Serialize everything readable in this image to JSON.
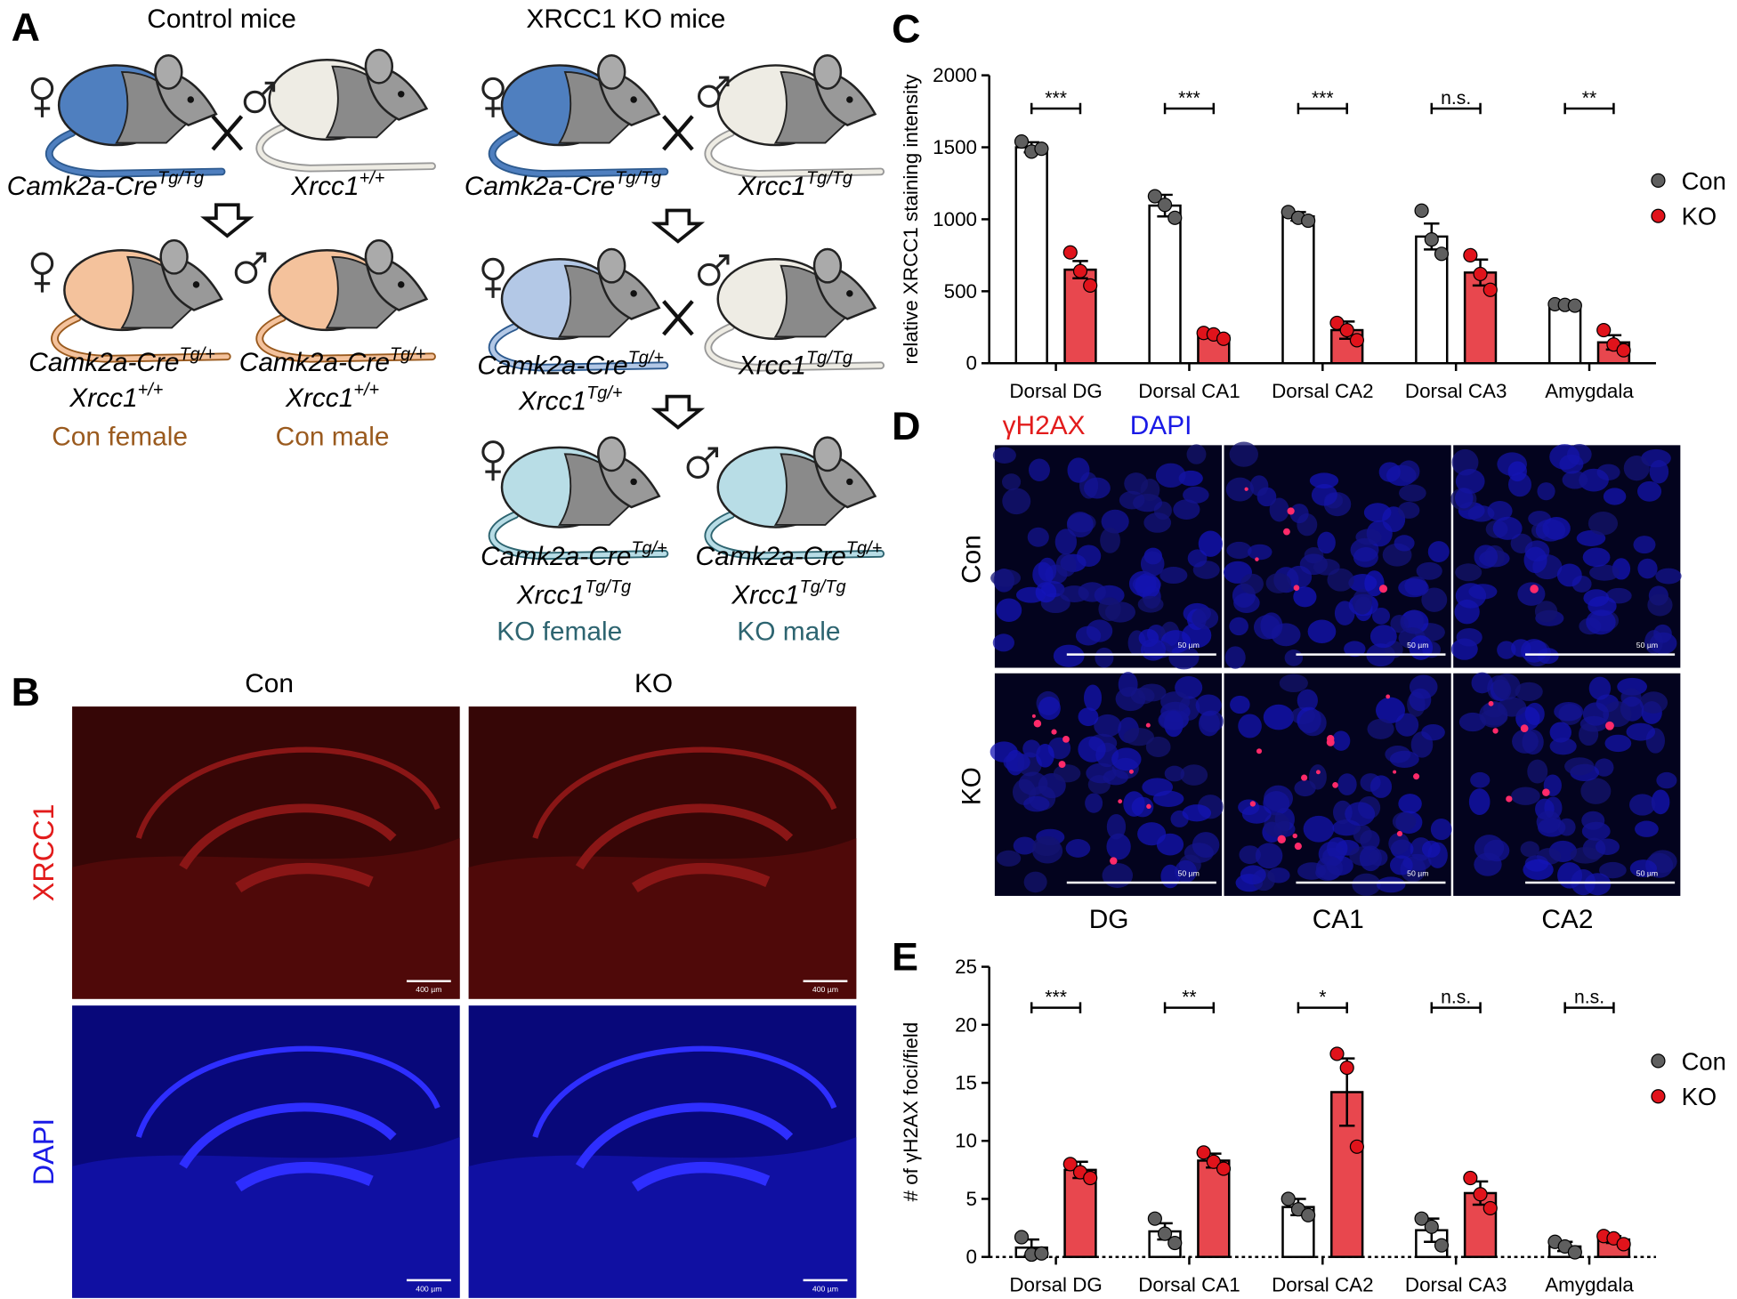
{
  "panel_a": {
    "label": "A",
    "titles": [
      "Control mice",
      "XRCC1 KO mice"
    ],
    "genotypes": [
      {
        "gene": "Camk2a-Cre",
        "sup": "Tg/Tg"
      },
      {
        "gene": "Xrcc1",
        "sup": "+/+"
      },
      {
        "gene": "Camk2a-Cre",
        "sup": "Tg/+"
      },
      {
        "gene": "Xrcc1",
        "sup": "+/+"
      },
      {
        "gene": "Camk2a-Cre",
        "sup": "Tg/+"
      },
      {
        "gene": "Xrcc1",
        "sup": "+/+"
      },
      {
        "gene": "Camk2a-Cre",
        "sup": "Tg/Tg"
      },
      {
        "gene": "Xrcc1",
        "sup": "Tg/Tg"
      },
      {
        "gene": "Camk2a-Cre",
        "sup": "Tg/+"
      },
      {
        "gene": "Xrcc1",
        "sup": "Tg/+"
      },
      {
        "gene": "Xrcc1",
        "sup": "Tg/Tg"
      },
      {
        "gene": "Camk2a-Cre",
        "sup": "Tg/+"
      },
      {
        "gene": "Xrcc1",
        "sup": "Tg/Tg"
      },
      {
        "gene": "Camk2a-Cre",
        "sup": "Tg/+"
      },
      {
        "gene": "Xrcc1",
        "sup": "Tg/Tg"
      }
    ],
    "groups": [
      "Con female",
      "Con male",
      "KO female",
      "KO male"
    ]
  },
  "panel_b": {
    "label": "B",
    "columns": [
      "Con",
      "KO"
    ],
    "rows": [
      "XRCC1",
      "DAPI"
    ],
    "scale_label": "400 µm"
  },
  "panel_d": {
    "label": "D",
    "stains": [
      "γH2AX",
      "DAPI"
    ],
    "rows": [
      "Con",
      "KO"
    ],
    "columns": [
      "DG",
      "CA1",
      "CA2"
    ],
    "scale_label": "50 µm"
  },
  "chart_data": [
    {
      "type": "bar",
      "label": "C",
      "ylabel": "relative XRCC1 staining intensity",
      "categories": [
        "Dorsal DG",
        "Dorsal CA1",
        "Dorsal CA2",
        "Dorsal CA3",
        "Amygdala"
      ],
      "ylim": [
        0,
        2000
      ],
      "yticks": [
        0,
        500,
        1000,
        1500,
        2000
      ],
      "series": [
        {
          "name": "Con",
          "color": "#ffffff",
          "dot_color": "#5f5f5f",
          "values": [
            1500,
            1095,
            1020,
            880,
            400
          ],
          "errors": [
            35,
            75,
            30,
            90,
            8
          ],
          "points": [
            [
              1540,
              1470,
              1490
            ],
            [
              1160,
              1100,
              1010
            ],
            [
              1050,
              1010,
              990
            ],
            [
              1060,
              860,
              760
            ],
            [
              410,
              405,
              400
            ]
          ]
        },
        {
          "name": "KO",
          "color": "#e8474e",
          "dot_color": "#e0131b",
          "values": [
            650,
            190,
            230,
            630,
            145
          ],
          "errors": [
            60,
            15,
            60,
            90,
            50
          ],
          "points": [
            [
              770,
              640,
              540
            ],
            [
              210,
              200,
              170
            ],
            [
              280,
              230,
              160
            ],
            [
              750,
              620,
              510
            ],
            [
              230,
              130,
              90
            ]
          ]
        }
      ],
      "significance": [
        "***",
        "***",
        "***",
        "n.s.",
        "**"
      ]
    },
    {
      "type": "bar",
      "label": "E",
      "ylabel": "# of γH2AX foci/field",
      "categories": [
        "Dorsal DG",
        "Dorsal CA1",
        "Dorsal CA2",
        "Dorsal CA3",
        "Amygdala"
      ],
      "ylim": [
        0,
        25
      ],
      "yticks": [
        0,
        5,
        10,
        15,
        20,
        25
      ],
      "series": [
        {
          "name": "Con",
          "color": "#ffffff",
          "dot_color": "#5f5f5f",
          "values": [
            0.8,
            2.2,
            4.3,
            2.3,
            0.9
          ],
          "errors": [
            0.7,
            0.7,
            0.7,
            1.0,
            0.4
          ],
          "points": [
            [
              1.7,
              0.2,
              0.3
            ],
            [
              3.3,
              2.0,
              1.2
            ],
            [
              5.0,
              4.1,
              3.6
            ],
            [
              3.3,
              2.6,
              1.0
            ],
            [
              1.3,
              0.9,
              0.4
            ]
          ]
        },
        {
          "name": "KO",
          "color": "#e8474e",
          "dot_color": "#e0131b",
          "values": [
            7.5,
            8.3,
            14.2,
            5.5,
            1.5
          ],
          "errors": [
            0.7,
            0.6,
            2.9,
            1.0,
            0.3
          ],
          "points": [
            [
              8.0,
              7.3,
              6.8
            ],
            [
              9.0,
              8.2,
              7.6
            ],
            [
              17.5,
              16.3,
              9.5
            ],
            [
              6.8,
              5.4,
              4.2
            ],
            [
              1.8,
              1.6,
              1.1
            ]
          ]
        }
      ],
      "significance": [
        "***",
        "**",
        "*",
        "n.s.",
        "n.s."
      ]
    }
  ]
}
